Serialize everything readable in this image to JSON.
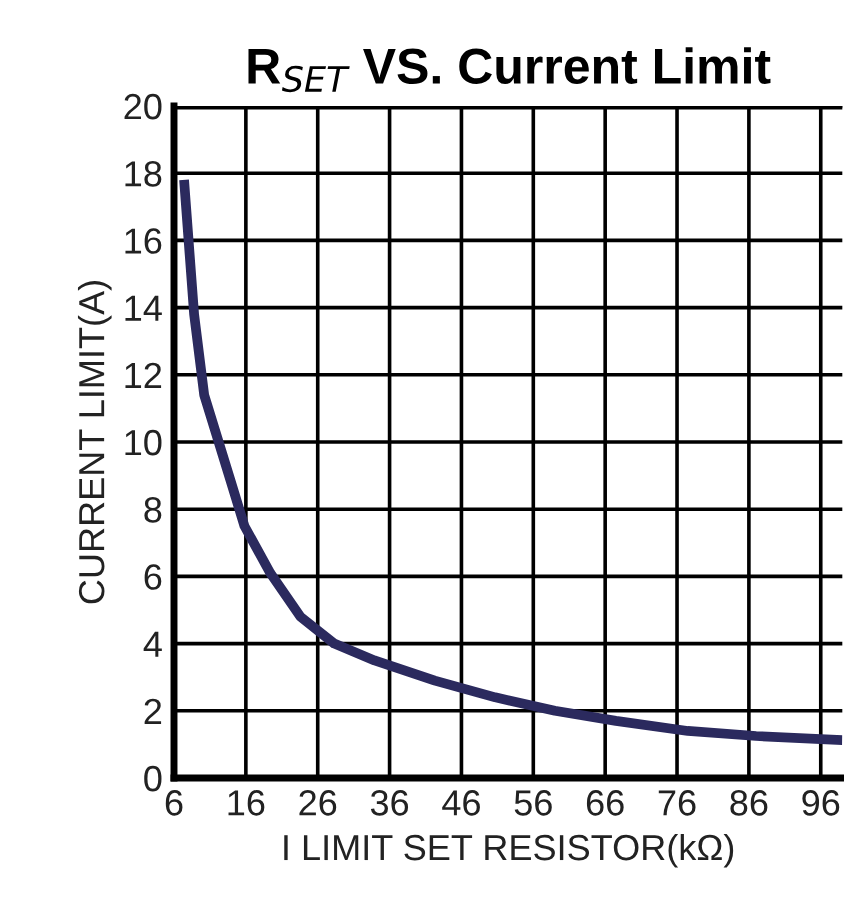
{
  "chart_data": {
    "type": "line",
    "title": "R$_{SET}$ VS. Current Limit",
    "xlabel": "I LIMIT SET RESISTOR(kΩ)",
    "ylabel": "CURRENT LIMIT(A)",
    "series": [
      {
        "color": "#2b2a5e",
        "x": [
          7.4,
          8.8,
          10.2,
          13.8,
          15.8,
          19.4,
          23.6,
          28.3,
          33.9,
          42.3,
          50.7,
          59,
          67.5,
          77.5,
          87,
          99
        ],
        "values": [
          17.8,
          13.8,
          11.4,
          8.9,
          7.5,
          6.1,
          4.8,
          4.0,
          3.5,
          2.9,
          2.4,
          2.0,
          1.7,
          1.4,
          1.25,
          1.13
        ]
      }
    ],
    "xlim": [
      6,
      99
    ],
    "xticks": [
      6,
      16,
      26,
      36,
      46,
      56,
      66,
      76,
      86,
      96
    ],
    "ylim": [
      0,
      20
    ],
    "yticks": [
      0,
      2,
      4,
      6,
      8,
      10,
      12,
      14,
      16,
      18,
      20
    ],
    "grid": true,
    "legend": false,
    "marker": "none",
    "line_style": "solid"
  }
}
